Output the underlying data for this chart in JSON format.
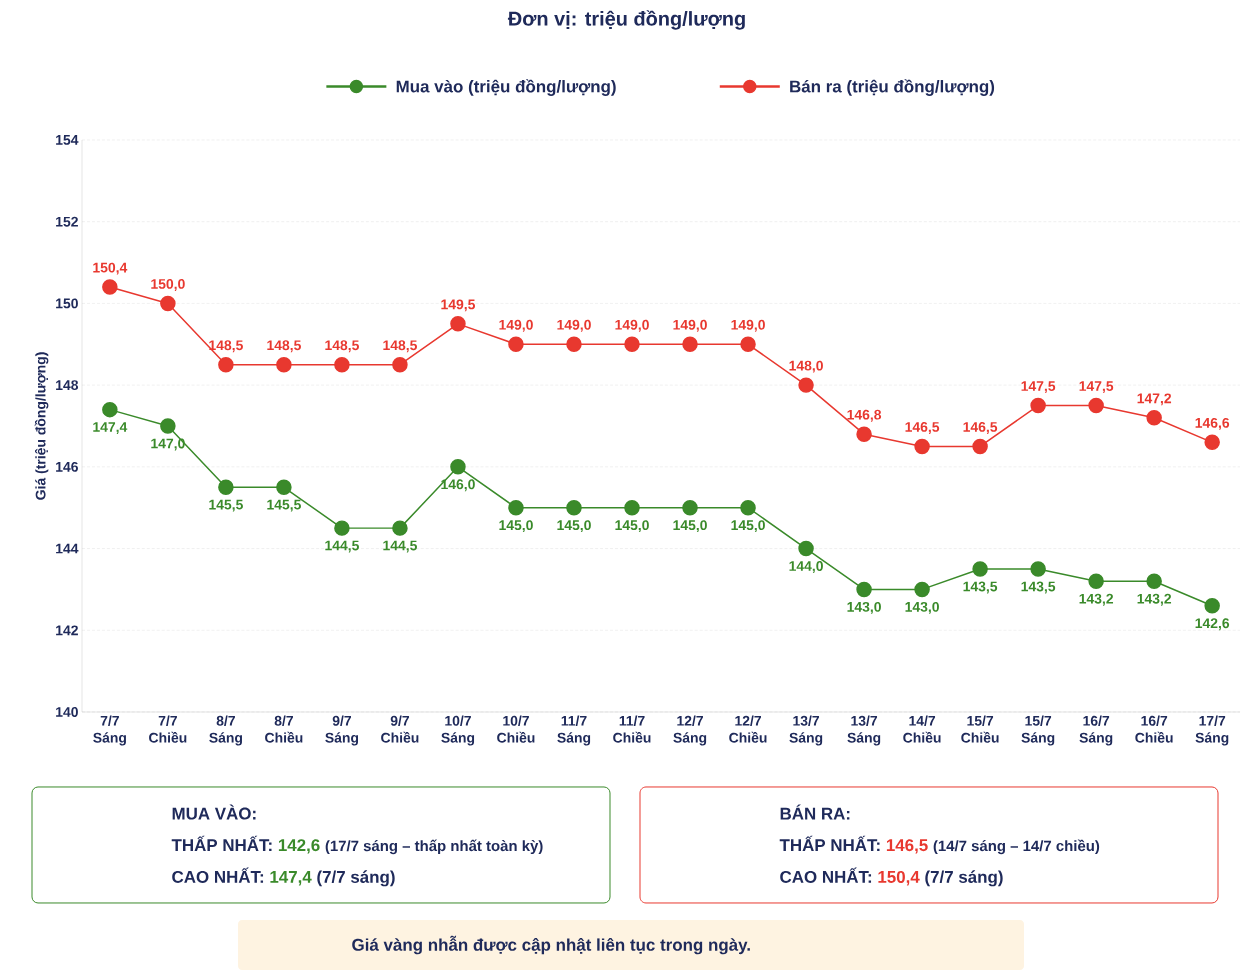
{
  "chart_data": {
    "type": "line",
    "title": "Đơn vị: triệu đồng/lượng",
    "ylabel": "Giá (triệu đồng/lượng)",
    "categories": [
      "7/7 Sáng",
      "7/7 Chiều",
      "8/7 Sáng",
      "8/7 Chiều",
      "9/7 Sáng",
      "9/7 Chiều",
      "10/7 Sáng",
      "10/7 Chiều",
      "11/7 Sáng",
      "11/7 Chiều",
      "12/7 Sáng",
      "12/7 Chiều",
      "13/7 Sáng",
      "13/7 Sáng",
      "14/7 Chiều",
      "15/7 Chiều",
      "15/7 Sáng",
      "16/7 Sáng",
      "16/7 Chiều",
      "17/7 Sáng"
    ],
    "series": [
      {
        "name": "Mua vào (triệu đồng/lượng)",
        "color": "#3a8a2a",
        "values": [
          147.4,
          147.0,
          145.5,
          145.5,
          144.5,
          144.5,
          146.0,
          145.0,
          145.0,
          145.0,
          145.0,
          145.0,
          144.0,
          143.0,
          143.0,
          143.5,
          143.5,
          143.2,
          143.2,
          142.6
        ],
        "value_labels": [
          "147,4",
          "147,0",
          "145,5",
          "145,5",
          "144,5",
          "144,5",
          "146,0",
          "145,0",
          "145,0",
          "145,0",
          "145,0",
          "145,0",
          "144,0",
          "143,0",
          "143,0",
          "143,5",
          "143,5",
          "143,2",
          "143,2",
          "142,6"
        ]
      },
      {
        "name": "Bán ra (triệu đồng/lượng)",
        "color": "#e8382f",
        "values": [
          150.4,
          150.0,
          148.5,
          148.5,
          148.5,
          148.5,
          149.5,
          149.0,
          149.0,
          149.0,
          149.0,
          149.0,
          148.0,
          146.8,
          146.5,
          146.5,
          147.5,
          147.5,
          147.2,
          146.6
        ],
        "value_labels": [
          "150,4",
          "150,0",
          "148,5",
          "148,5",
          "148,5",
          "148,5",
          "149,5",
          "149,0",
          "149,0",
          "149,0",
          "149,0",
          "149,0",
          "148,0",
          "146,8",
          "146,5",
          "146,5",
          "147,5",
          "147,5",
          "147,2",
          "146,6"
        ]
      }
    ],
    "ylim": [
      140,
      154
    ],
    "yticks": [
      140,
      142,
      144,
      146,
      148,
      150,
      152,
      154
    ],
    "grid": "y",
    "legend": "top",
    "marker": "circle",
    "line_style": "solid",
    "annotations": [
      "MUA VÀO:",
      "THẤP NHẤT:",
      "142,6",
      "(17/7 sáng – thấp nhất toàn kỳ)",
      "CAO NHẤT:",
      "147,4",
      "(7/7 sáng)",
      "BÁN RA:",
      "THẤP NHẤT:",
      "146,5",
      "(14/7 sáng – 14/7 chiều)",
      "CAO NHẤT:",
      "150,4",
      "(7/7 sáng)",
      "Giá vàng nhẫn được cập nhật liên tục trong ngày."
    ]
  }
}
